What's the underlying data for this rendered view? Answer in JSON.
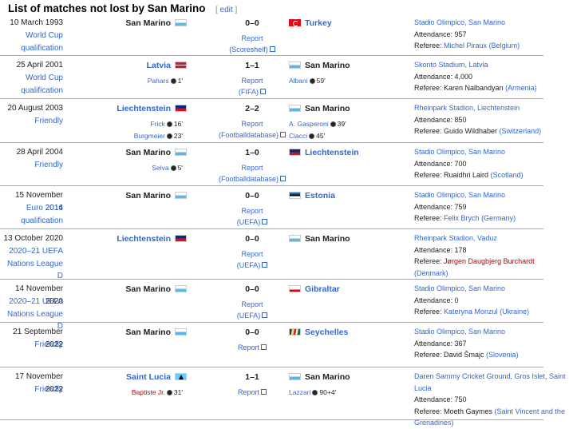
{
  "heading": {
    "title": "List of matches not lost by San Marino",
    "edit_open": "[",
    "edit_label": "edit",
    "edit_close": "]"
  },
  "rows": [
    {
      "date": "10 March 1993",
      "competition": [
        "World Cup",
        "qualification"
      ],
      "home": "San Marino",
      "home_link": false,
      "home_flag": "sm",
      "home_scorers": [],
      "score": "0–0",
      "report": [
        "Report",
        "(Scoreshelf)"
      ],
      "away": "Turkey",
      "away_link": true,
      "away_flag": "tr",
      "away_scorers": [],
      "venue": "Stadio Olimpico, San Marino",
      "attendance": "Attendance: 957",
      "referee_prefix": "Referee: ",
      "referee": "Michel Piraux",
      "referee_red": false,
      "referee_country": "(Belgium)"
    },
    {
      "date": "25 April 2001",
      "competition": [
        "World Cup",
        "qualification"
      ],
      "home": "Latvia",
      "home_link": true,
      "home_flag": "lv",
      "home_scorers": [
        {
          "name": "Pahars",
          "min": "1'"
        }
      ],
      "score": "1–1",
      "report": [
        "Report",
        "(FIFA)"
      ],
      "away": "San Marino",
      "away_link": false,
      "away_flag": "sm",
      "away_scorers": [
        {
          "name": "Albani",
          "min": "59'"
        }
      ],
      "venue": "Skonto Stadium, Latvia",
      "attendance": "Attendance: 4,000",
      "referee_prefix": "Referee: Karen Nalbandyan ",
      "referee": "",
      "referee_red": false,
      "referee_country": "(Armenia)"
    },
    {
      "date": "20 August 2003",
      "competition": [
        "Friendly"
      ],
      "home": "Liechtenstein",
      "home_link": true,
      "home_flag": "li",
      "home_scorers": [
        {
          "name": "Frick",
          "min": "16'"
        },
        {
          "name": "Burgmeier",
          "min": "23'"
        }
      ],
      "score": "2–2",
      "report": [
        "Report",
        "(Footballdatabase)"
      ],
      "away": "San Marino",
      "away_link": false,
      "away_flag": "sm",
      "away_scorers": [
        {
          "name": "A. Gasperoni",
          "min": "39'"
        },
        {
          "name": "Ciacci",
          "min": "45'"
        }
      ],
      "venue": "Rheinpark Stadion, Liechtenstein",
      "attendance": "Attendance: 850",
      "referee_prefix": "Referee: Guido Wildhaber ",
      "referee": "",
      "referee_red": false,
      "referee_country": "(Switzerland)"
    },
    {
      "date": "28 April 2004",
      "competition": [
        "Friendly"
      ],
      "home": "San Marino",
      "home_link": false,
      "home_flag": "sm",
      "home_scorers": [
        {
          "name": "Selva",
          "min": "5'"
        }
      ],
      "score": "1–0",
      "report": [
        "Report",
        "(Footballdatabase)"
      ],
      "away": "Liechtenstein",
      "away_link": true,
      "away_flag": "li",
      "away_scorers": [],
      "venue": "Stadio Olimpico, San Marino",
      "attendance": "Attendance: 700",
      "referee_prefix": "Referee: Ruaidhri Laird ",
      "referee": "",
      "referee_red": false,
      "referee_country": "(Scotland)"
    },
    {
      "date": "15 November 2014",
      "competition": [
        "Euro 2016",
        "qualification"
      ],
      "home": "San Marino",
      "home_link": false,
      "home_flag": "sm",
      "home_scorers": [],
      "score": "0–0",
      "report": [
        "Report",
        "(UEFA)"
      ],
      "away": "Estonia",
      "away_link": true,
      "away_flag": "ee",
      "away_scorers": [],
      "venue": "Stadio Olimpico, San Marino",
      "attendance": "Attendance: 759",
      "referee_prefix": "Referee: ",
      "referee": "Felix Brych",
      "referee_red": false,
      "referee_country": "(Germany)"
    },
    {
      "date": "13 October 2020",
      "competition": [
        "2020–21 UEFA",
        "Nations League D"
      ],
      "home": "Liechtenstein",
      "home_link": true,
      "home_flag": "li",
      "home_scorers": [],
      "score": "0–0",
      "report": [
        "Report",
        "(UEFA)"
      ],
      "away": "San Marino",
      "away_link": false,
      "away_flag": "sm",
      "away_scorers": [],
      "venue": "Rheinpark Stadion, Vaduz",
      "attendance": "Attendance: 178",
      "referee_prefix": "Referee: ",
      "referee": "Jørgen Daugbjerg Burchardt",
      "referee_red": true,
      "referee_country": "(Denmark)"
    },
    {
      "date": "14 November 2020",
      "competition": [
        "2020–21 UEFA",
        "Nations League D"
      ],
      "home": "San Marino",
      "home_link": false,
      "home_flag": "sm",
      "home_scorers": [],
      "score": "0–0",
      "report": [
        "Report",
        "(UEFA)"
      ],
      "away": "Gibraltar",
      "away_link": true,
      "away_flag": "gi",
      "away_scorers": [],
      "venue": "Stadio Olimpico, San Marino",
      "attendance": "Attendance: 0",
      "referee_prefix": "Referee: ",
      "referee": "Kateryna Monzul",
      "referee_red": false,
      "referee_country": "(Ukraine)"
    },
    {
      "date": "21 September 2022",
      "competition": [
        "Friendly"
      ],
      "home": "San Marino",
      "home_link": false,
      "home_flag": "sm",
      "home_scorers": [],
      "score": "0–0",
      "report": [
        "Report"
      ],
      "away": "Seychelles",
      "away_link": true,
      "away_flag": "sc",
      "away_scorers": [],
      "venue": "Stadio Olimpico, San Marino",
      "attendance": "Attendance: 367",
      "referee_prefix": "Referee: David Šmajc ",
      "referee": "",
      "referee_red": false,
      "referee_country": "(Slovenia)"
    },
    {
      "date": "17 November 2022",
      "competition": [
        "Friendly"
      ],
      "home": "Saint Lucia",
      "home_link": true,
      "home_flag": "lc",
      "home_scorers": [
        {
          "name": "Baptiste Jr.",
          "min": "31'",
          "red": true
        }
      ],
      "score": "1–1",
      "report": [
        "Report"
      ],
      "away": "San Marino",
      "away_link": false,
      "away_flag": "sm",
      "away_scorers": [
        {
          "name": "Lazzari",
          "min": "90+4'"
        }
      ],
      "venue": "Daren Sammy Cricket Ground, Gros Islet, Saint Lucia",
      "attendance": "Attendance: 750",
      "referee_prefix": "Referee: Moeth Gaymes ",
      "referee": "",
      "referee_red": false,
      "referee_country": "(Saint Vincent and the Grenadines)"
    }
  ]
}
